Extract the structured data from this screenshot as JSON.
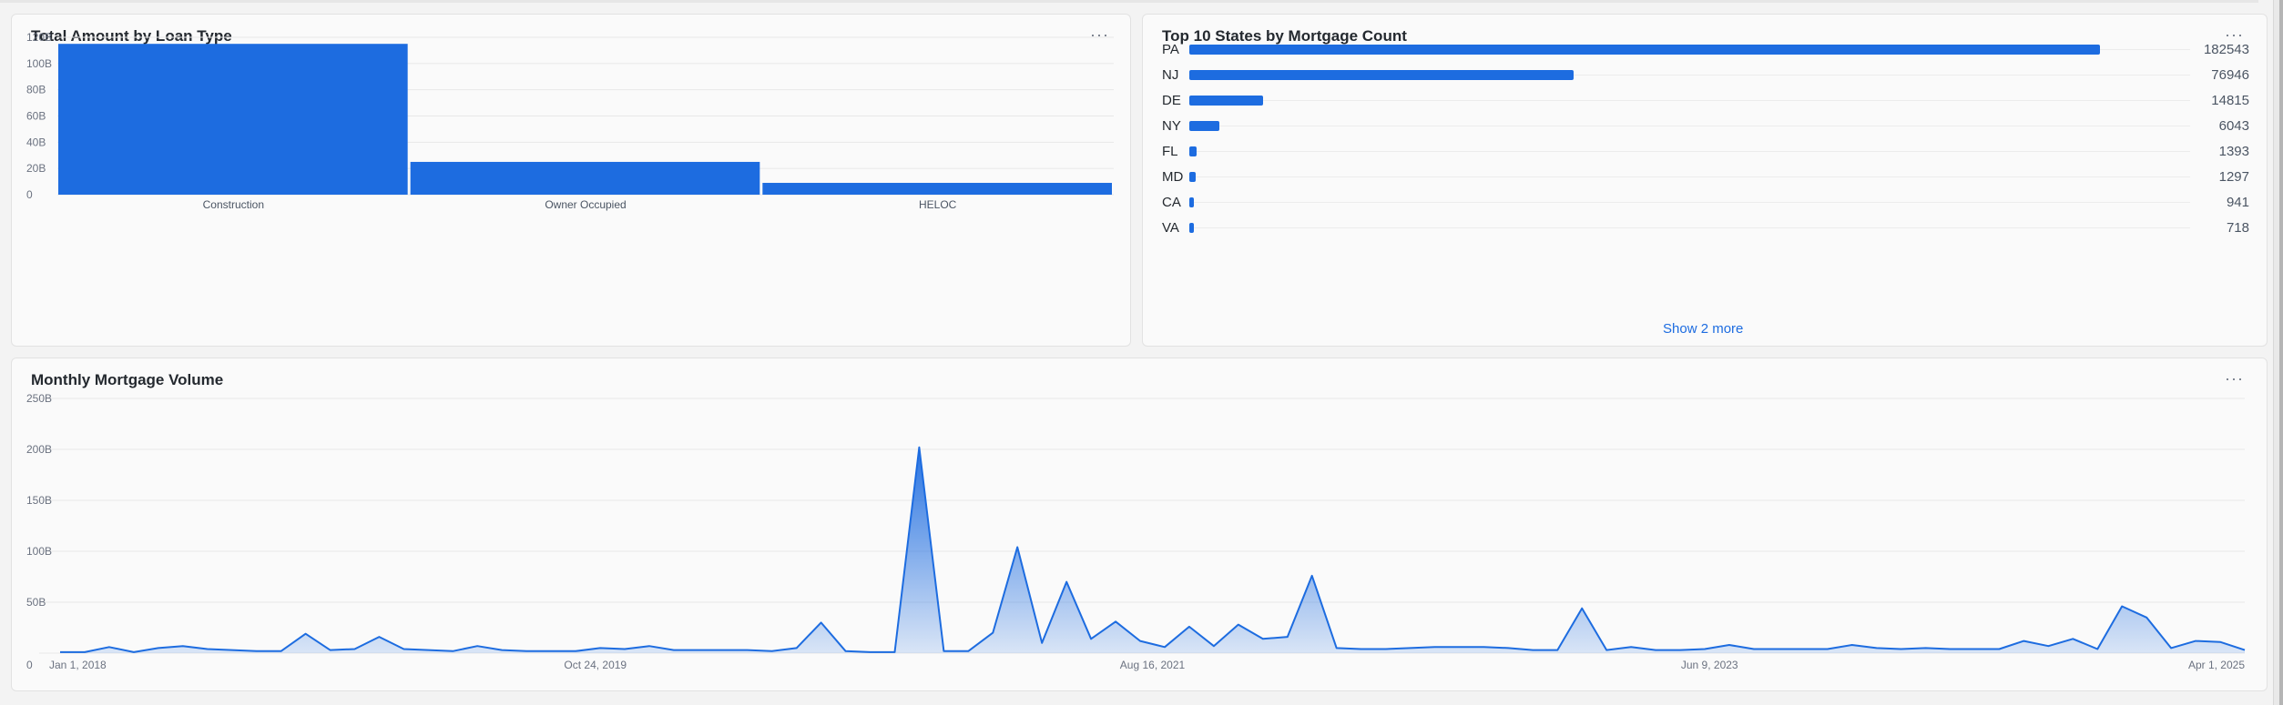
{
  "cards": {
    "loan_type": {
      "title": "Total Amount by Loan Type",
      "menu": "···"
    },
    "states": {
      "title": "Top 10 States by Mortgage Count",
      "menu": "···",
      "show_more": "Show 2 more"
    },
    "monthly": {
      "title": "Monthly Mortgage Volume",
      "menu": "···"
    }
  },
  "colors": {
    "accent": "#1d6ce0",
    "grid": "#e8e8e8",
    "text_muted": "#6b7280"
  },
  "chart_data": [
    {
      "type": "bar",
      "title": "Total Amount by Loan Type",
      "categories": [
        "Construction",
        "Owner Occupied",
        "HELOC"
      ],
      "values": [
        115,
        25,
        9
      ],
      "ylim": [
        0,
        120
      ],
      "yticks": [
        0,
        20,
        40,
        60,
        80,
        100,
        120
      ],
      "ytick_labels": [
        "0",
        "20B",
        "40B",
        "60B",
        "80B",
        "100B",
        "120B"
      ],
      "grid": true
    },
    {
      "type": "bar",
      "orientation": "horizontal",
      "title": "Top 10 States by Mortgage Count",
      "categories": [
        "PA",
        "NJ",
        "DE",
        "NY",
        "FL",
        "MD",
        "CA",
        "VA"
      ],
      "values": [
        182543,
        76946,
        14815,
        6043,
        1393,
        1297,
        941,
        718
      ],
      "value_labels": [
        "182543",
        "76946",
        "14815",
        "6043",
        "1393",
        "1297",
        "941",
        "718"
      ]
    },
    {
      "type": "area",
      "title": "Monthly Mortgage Volume",
      "ylim": [
        0,
        250
      ],
      "yticks": [
        0,
        50,
        100,
        150,
        200,
        250
      ],
      "ytick_labels": [
        "0",
        "50B",
        "100B",
        "150B",
        "200B",
        "250B"
      ],
      "xtick_labels": [
        "Jan 1, 2018",
        "Oct 24, 2019",
        "Aug 16, 2021",
        "Jun 9, 2023",
        "Apr 1, 2025"
      ],
      "grid": true,
      "values": [
        1,
        1,
        6,
        1,
        5,
        7,
        4,
        3,
        2,
        2,
        19,
        3,
        4,
        16,
        4,
        3,
        2,
        7,
        3,
        2,
        2,
        2,
        5,
        4,
        7,
        3,
        3,
        3,
        3,
        2,
        5,
        30,
        2,
        1,
        1,
        202,
        2,
        2,
        20,
        104,
        10,
        70,
        14,
        31,
        12,
        6,
        26,
        7,
        28,
        14,
        16,
        76,
        5,
        4,
        4,
        5,
        6,
        6,
        6,
        5,
        3,
        3,
        44,
        3,
        6,
        3,
        3,
        4,
        8,
        4,
        4,
        4,
        4,
        8,
        5,
        4,
        5,
        4,
        4,
        4,
        12,
        7,
        14,
        4,
        46,
        35,
        5,
        12,
        11,
        3
      ]
    }
  ]
}
